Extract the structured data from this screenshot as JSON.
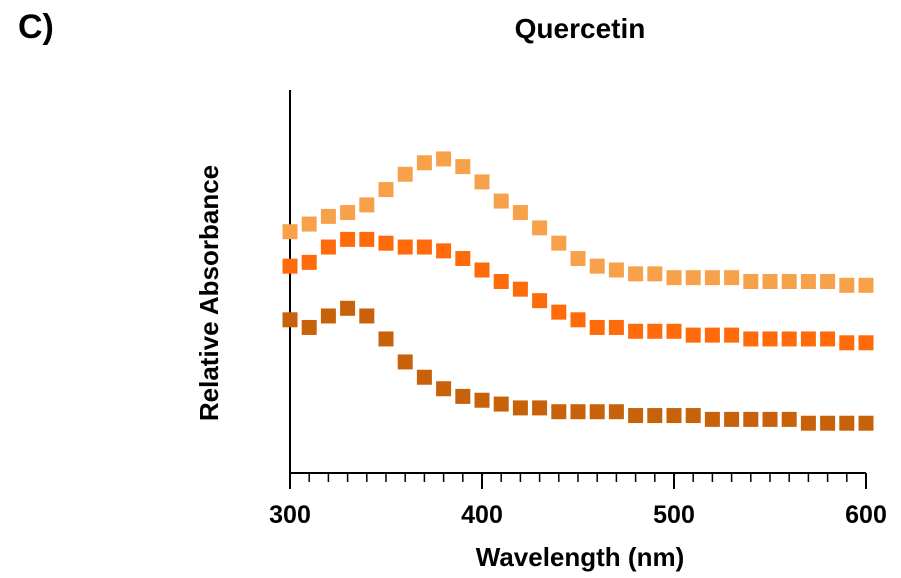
{
  "panel_label": "C)",
  "chart_data": {
    "type": "scatter",
    "title": "Quercetin",
    "xlabel": "Wavelength (nm)",
    "ylabel": "Relative Absorbance",
    "xlim": [
      300,
      600
    ],
    "ylim": [
      0,
      1
    ],
    "x_ticks": [
      300,
      400,
      500,
      600
    ],
    "y_ticks": [],
    "grid": false,
    "legend": "none",
    "x": [
      300,
      310,
      320,
      330,
      340,
      350,
      360,
      370,
      380,
      390,
      400,
      410,
      420,
      430,
      440,
      450,
      460,
      470,
      480,
      490,
      500,
      510,
      520,
      530,
      540,
      550,
      560,
      570,
      580,
      590,
      600
    ],
    "series": [
      {
        "color": "#F7A24A",
        "values": [
          0.63,
          0.65,
          0.67,
          0.68,
          0.7,
          0.74,
          0.78,
          0.81,
          0.82,
          0.8,
          0.76,
          0.71,
          0.68,
          0.64,
          0.6,
          0.56,
          0.54,
          0.53,
          0.52,
          0.52,
          0.51,
          0.51,
          0.51,
          0.51,
          0.5,
          0.5,
          0.5,
          0.5,
          0.5,
          0.49,
          0.49
        ]
      },
      {
        "color": "#FF6A0A",
        "values": [
          0.54,
          0.55,
          0.59,
          0.61,
          0.61,
          0.6,
          0.59,
          0.59,
          0.58,
          0.56,
          0.53,
          0.5,
          0.48,
          0.45,
          0.42,
          0.4,
          0.38,
          0.38,
          0.37,
          0.37,
          0.37,
          0.36,
          0.36,
          0.36,
          0.35,
          0.35,
          0.35,
          0.35,
          0.35,
          0.34,
          0.34
        ]
      },
      {
        "color": "#C8620A",
        "values": [
          0.4,
          0.38,
          0.41,
          0.43,
          0.41,
          0.35,
          0.29,
          0.25,
          0.22,
          0.2,
          0.19,
          0.18,
          0.17,
          0.17,
          0.16,
          0.16,
          0.16,
          0.16,
          0.15,
          0.15,
          0.15,
          0.15,
          0.14,
          0.14,
          0.14,
          0.14,
          0.14,
          0.13,
          0.13,
          0.13,
          0.13
        ]
      }
    ]
  }
}
